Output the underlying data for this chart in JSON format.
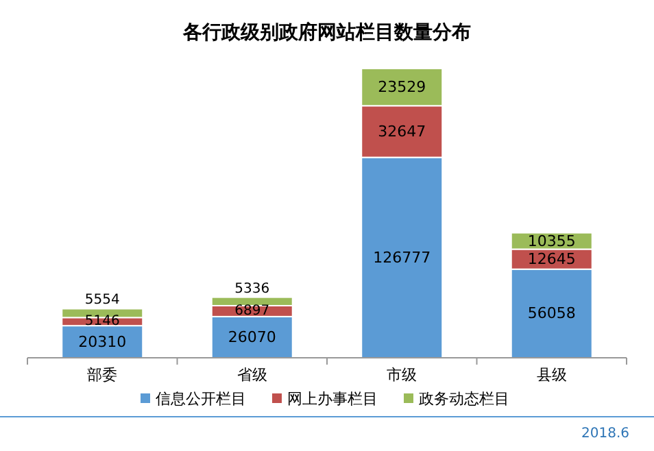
{
  "chart_data": {
    "type": "bar",
    "title": "各行政级别政府网站栏目数量分布",
    "categories": [
      "部委",
      "省级",
      "市级",
      "县级"
    ],
    "stacked": true,
    "data_labels": true,
    "legend": "bottom",
    "series": [
      {
        "name": "信息公开栏目",
        "color": "#5b9bd5",
        "values": [
          20310,
          26070,
          126777,
          56058
        ]
      },
      {
        "name": "网上办事栏目",
        "color": "#c0504d",
        "values": [
          5146,
          6897,
          32647,
          12645
        ]
      },
      {
        "name": "政务动态栏目",
        "color": "#9bbb59",
        "values": [
          5554,
          5336,
          23529,
          10355
        ]
      }
    ],
    "annotations": [
      "2018.6"
    ]
  }
}
